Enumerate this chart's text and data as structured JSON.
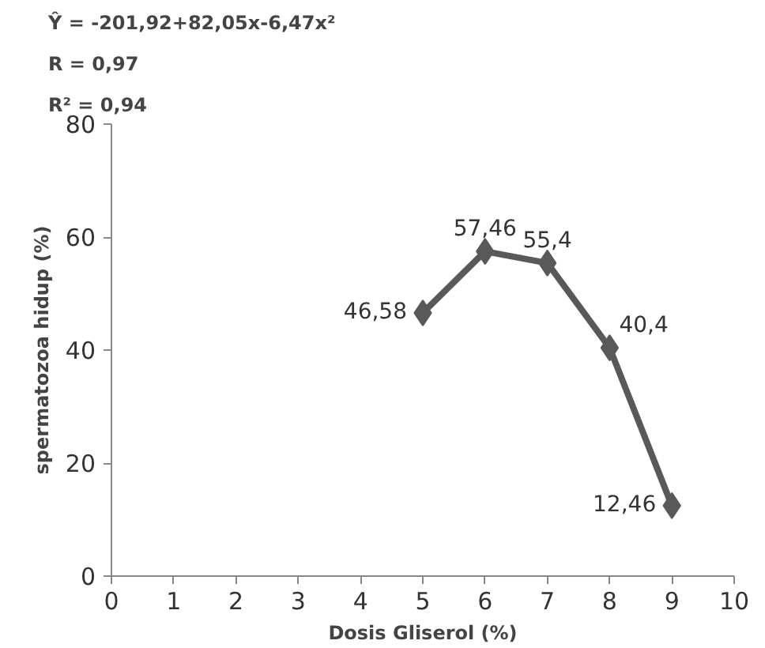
{
  "chart_data": {
    "type": "line",
    "xlabel": "Dosis Gliserol (%)",
    "ylabel": "spermatozoa hidup (%)",
    "annotations": [
      "Ŷ = -201,92+82,05x-6,47x²",
      "R  = 0,97",
      "R² = 0,94"
    ],
    "x": [
      5,
      6,
      7,
      8,
      9
    ],
    "series": [
      {
        "color": "#595959",
        "values": [
          46.58,
          57.46,
          55.4,
          40.4,
          12.46
        ],
        "value_labels": [
          "46,58",
          "57,46",
          "55,4",
          "40,4",
          "12,46"
        ]
      }
    ],
    "xlim": [
      0,
      10
    ],
    "xticks": [
      0,
      1,
      2,
      3,
      4,
      5,
      6,
      7,
      8,
      9,
      10
    ],
    "ylim": [
      0,
      80
    ],
    "yticks": [
      0,
      20,
      40,
      60,
      80
    ],
    "grid": false,
    "marker": "diamond",
    "line_style": "solid"
  }
}
